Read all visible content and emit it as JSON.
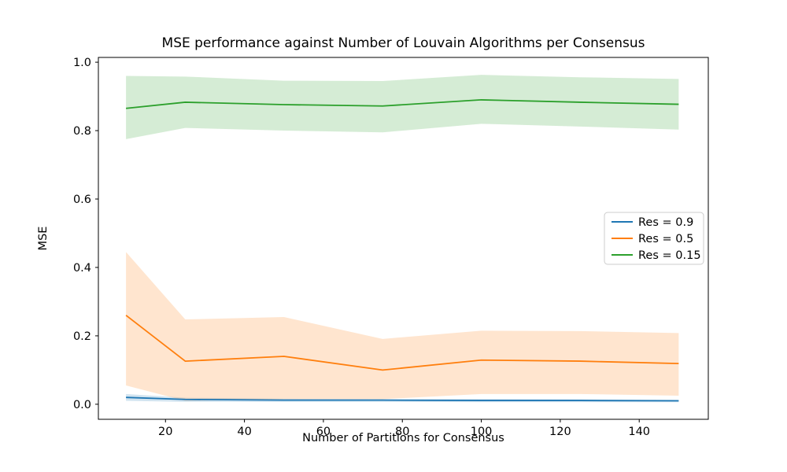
{
  "figure": {
    "title": "MSE performance against Number of Louvain Algorithms per Consensus",
    "xlabel": "Number of Partitions for Consensus",
    "ylabel": "MSE",
    "background_color": "#ffffff",
    "spine_color": "#000000",
    "text_color": "#000000"
  },
  "chart_data": {
    "type": "line",
    "title": "MSE performance against Number of Louvain Algorithms per Consensus",
    "xlabel": "Number of Partitions for Consensus",
    "ylabel": "MSE",
    "grid": false,
    "x": [
      10,
      25,
      50,
      75,
      100,
      125,
      150
    ],
    "series": [
      {
        "name": "Res = 0.9",
        "color": "#1f77b4",
        "values": [
          0.02,
          0.014,
          0.012,
          0.012,
          0.011,
          0.011,
          0.01
        ],
        "band_upper": [
          0.03,
          0.019,
          0.016,
          0.015,
          0.015,
          0.014,
          0.013
        ],
        "band_lower": [
          0.01,
          0.007,
          0.007,
          0.007,
          0.006,
          0.006,
          0.006
        ]
      },
      {
        "name": "Res = 0.5",
        "color": "#ff7f0e",
        "values": [
          0.26,
          0.126,
          0.14,
          0.1,
          0.129,
          0.126,
          0.119
        ],
        "band_upper": [
          0.445,
          0.248,
          0.255,
          0.191,
          0.215,
          0.214,
          0.208
        ],
        "band_lower": [
          0.055,
          0.01,
          0.015,
          0.015,
          0.03,
          0.03,
          0.025
        ]
      },
      {
        "name": "Res = 0.15",
        "color": "#2ca02c",
        "values": [
          0.865,
          0.883,
          0.876,
          0.872,
          0.89,
          0.883,
          0.877
        ],
        "band_upper": [
          0.96,
          0.958,
          0.946,
          0.945,
          0.963,
          0.956,
          0.951
        ],
        "band_lower": [
          0.775,
          0.808,
          0.8,
          0.795,
          0.82,
          0.812,
          0.803
        ]
      }
    ],
    "band_alpha": 0.2,
    "xticks": [
      "20",
      "40",
      "60",
      "80",
      "100",
      "120",
      "140"
    ],
    "xtick_values": [
      20,
      40,
      60,
      80,
      100,
      120,
      140
    ],
    "yticks": [
      "0.0",
      "0.2",
      "0.4",
      "0.6",
      "0.8",
      "1.0"
    ],
    "ytick_values": [
      0.0,
      0.2,
      0.4,
      0.6,
      0.8,
      1.0
    ],
    "xlim": [
      3,
      157.5
    ],
    "ylim": [
      -0.044,
      1.014
    ],
    "legend": {
      "position": "center right",
      "entries": [
        "Res = 0.9",
        "Res = 0.5",
        "Res = 0.15"
      ],
      "edge_color": "#cccccc",
      "face_color": "#ffffff"
    }
  }
}
